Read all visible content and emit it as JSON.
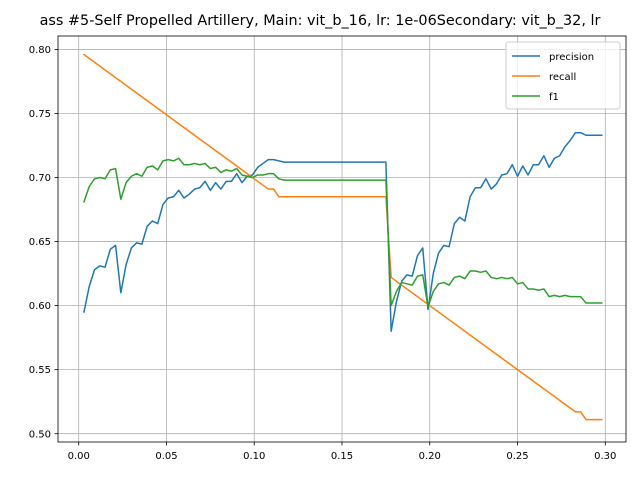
{
  "chart_data": {
    "type": "line",
    "title": "ass #5-Self Propelled Artillery, Main: vit_b_16, lr: 1e-06Secondary: vit_b_32, lr",
    "xlabel": "",
    "ylabel": "",
    "xlim": [
      -0.0118,
      0.3118
    ],
    "ylim": [
      0.4935,
      0.8105
    ],
    "x_ticks": [
      0.0,
      0.05,
      0.1,
      0.15,
      0.2,
      0.25,
      0.3
    ],
    "x_tick_labels": [
      "0.00",
      "0.05",
      "0.10",
      "0.15",
      "0.20",
      "0.25",
      "0.30"
    ],
    "y_ticks": [
      0.5,
      0.55,
      0.6,
      0.65,
      0.7,
      0.75,
      0.8
    ],
    "y_tick_labels": [
      "0.50",
      "0.55",
      "0.60",
      "0.65",
      "0.70",
      "0.75",
      "0.80"
    ],
    "grid": true,
    "legend_position": "top-right",
    "series": [
      {
        "name": "precision",
        "color": "#1f77b4",
        "points": [
          [
            0.003,
            0.595
          ],
          [
            0.006,
            0.615
          ],
          [
            0.009,
            0.628
          ],
          [
            0.012,
            0.631
          ],
          [
            0.015,
            0.63
          ],
          [
            0.018,
            0.644
          ],
          [
            0.021,
            0.647
          ],
          [
            0.024,
            0.61
          ],
          [
            0.027,
            0.632
          ],
          [
            0.03,
            0.645
          ],
          [
            0.033,
            0.649
          ],
          [
            0.036,
            0.648
          ],
          [
            0.039,
            0.662
          ],
          [
            0.042,
            0.666
          ],
          [
            0.045,
            0.664
          ],
          [
            0.048,
            0.679
          ],
          [
            0.051,
            0.684
          ],
          [
            0.054,
            0.685
          ],
          [
            0.057,
            0.69
          ],
          [
            0.06,
            0.684
          ],
          [
            0.063,
            0.687
          ],
          [
            0.066,
            0.691
          ],
          [
            0.069,
            0.692
          ],
          [
            0.072,
            0.697
          ],
          [
            0.075,
            0.69
          ],
          [
            0.078,
            0.696
          ],
          [
            0.081,
            0.691
          ],
          [
            0.084,
            0.697
          ],
          [
            0.087,
            0.697
          ],
          [
            0.09,
            0.703
          ],
          [
            0.093,
            0.696
          ],
          [
            0.096,
            0.701
          ],
          [
            0.099,
            0.702
          ],
          [
            0.102,
            0.708
          ],
          [
            0.105,
            0.711
          ],
          [
            0.108,
            0.714
          ],
          [
            0.111,
            0.714
          ],
          [
            0.114,
            0.713
          ],
          [
            0.117,
            0.712
          ],
          [
            0.175,
            0.712
          ],
          [
            0.178,
            0.58
          ],
          [
            0.181,
            0.603
          ],
          [
            0.184,
            0.619
          ],
          [
            0.187,
            0.624
          ],
          [
            0.19,
            0.623
          ],
          [
            0.193,
            0.639
          ],
          [
            0.196,
            0.645
          ],
          [
            0.199,
            0.597
          ],
          [
            0.202,
            0.625
          ],
          [
            0.205,
            0.641
          ],
          [
            0.208,
            0.647
          ],
          [
            0.211,
            0.646
          ],
          [
            0.214,
            0.664
          ],
          [
            0.217,
            0.669
          ],
          [
            0.22,
            0.666
          ],
          [
            0.223,
            0.685
          ],
          [
            0.226,
            0.692
          ],
          [
            0.229,
            0.692
          ],
          [
            0.232,
            0.699
          ],
          [
            0.235,
            0.691
          ],
          [
            0.238,
            0.695
          ],
          [
            0.241,
            0.702
          ],
          [
            0.244,
            0.703
          ],
          [
            0.247,
            0.71
          ],
          [
            0.25,
            0.701
          ],
          [
            0.253,
            0.709
          ],
          [
            0.256,
            0.702
          ],
          [
            0.259,
            0.71
          ],
          [
            0.262,
            0.71
          ],
          [
            0.265,
            0.717
          ],
          [
            0.268,
            0.708
          ],
          [
            0.271,
            0.715
          ],
          [
            0.274,
            0.717
          ],
          [
            0.277,
            0.724
          ],
          [
            0.28,
            0.729
          ],
          [
            0.283,
            0.735
          ],
          [
            0.286,
            0.735
          ],
          [
            0.289,
            0.733
          ],
          [
            0.292,
            0.733
          ],
          [
            0.298,
            0.733
          ]
        ]
      },
      {
        "name": "recall",
        "color": "#ff7f0e",
        "points": [
          [
            0.003,
            0.796
          ],
          [
            0.108,
            0.691
          ],
          [
            0.111,
            0.691
          ],
          [
            0.114,
            0.685
          ],
          [
            0.175,
            0.685
          ],
          [
            0.178,
            0.622
          ],
          [
            0.283,
            0.517
          ],
          [
            0.286,
            0.517
          ],
          [
            0.289,
            0.511
          ],
          [
            0.298,
            0.511
          ]
        ]
      },
      {
        "name": "f1",
        "color": "#2ca02c",
        "points": [
          [
            0.003,
            0.681
          ],
          [
            0.006,
            0.693
          ],
          [
            0.009,
            0.699
          ],
          [
            0.012,
            0.7
          ],
          [
            0.015,
            0.699
          ],
          [
            0.018,
            0.706
          ],
          [
            0.021,
            0.707
          ],
          [
            0.024,
            0.683
          ],
          [
            0.027,
            0.696
          ],
          [
            0.03,
            0.701
          ],
          [
            0.033,
            0.703
          ],
          [
            0.036,
            0.701
          ],
          [
            0.039,
            0.708
          ],
          [
            0.042,
            0.709
          ],
          [
            0.045,
            0.706
          ],
          [
            0.048,
            0.713
          ],
          [
            0.051,
            0.714
          ],
          [
            0.054,
            0.713
          ],
          [
            0.057,
            0.715
          ],
          [
            0.06,
            0.71
          ],
          [
            0.063,
            0.71
          ],
          [
            0.066,
            0.711
          ],
          [
            0.069,
            0.71
          ],
          [
            0.072,
            0.711
          ],
          [
            0.075,
            0.707
          ],
          [
            0.078,
            0.708
          ],
          [
            0.081,
            0.704
          ],
          [
            0.084,
            0.706
          ],
          [
            0.087,
            0.705
          ],
          [
            0.09,
            0.707
          ],
          [
            0.093,
            0.702
          ],
          [
            0.096,
            0.701
          ],
          [
            0.099,
            0.7
          ],
          [
            0.102,
            0.702
          ],
          [
            0.105,
            0.702
          ],
          [
            0.108,
            0.703
          ],
          [
            0.111,
            0.703
          ],
          [
            0.114,
            0.699
          ],
          [
            0.117,
            0.698
          ],
          [
            0.175,
            0.698
          ],
          [
            0.178,
            0.6
          ],
          [
            0.181,
            0.611
          ],
          [
            0.184,
            0.618
          ],
          [
            0.187,
            0.617
          ],
          [
            0.19,
            0.616
          ],
          [
            0.193,
            0.623
          ],
          [
            0.196,
            0.624
          ],
          [
            0.199,
            0.599
          ],
          [
            0.202,
            0.611
          ],
          [
            0.205,
            0.617
          ],
          [
            0.208,
            0.618
          ],
          [
            0.211,
            0.616
          ],
          [
            0.214,
            0.622
          ],
          [
            0.217,
            0.623
          ],
          [
            0.22,
            0.621
          ],
          [
            0.223,
            0.627
          ],
          [
            0.226,
            0.627
          ],
          [
            0.229,
            0.626
          ],
          [
            0.232,
            0.627
          ],
          [
            0.235,
            0.622
          ],
          [
            0.238,
            0.621
          ],
          [
            0.241,
            0.622
          ],
          [
            0.244,
            0.621
          ],
          [
            0.247,
            0.622
          ],
          [
            0.25,
            0.617
          ],
          [
            0.253,
            0.618
          ],
          [
            0.256,
            0.613
          ],
          [
            0.259,
            0.613
          ],
          [
            0.262,
            0.612
          ],
          [
            0.265,
            0.613
          ],
          [
            0.268,
            0.607
          ],
          [
            0.271,
            0.608
          ],
          [
            0.274,
            0.607
          ],
          [
            0.277,
            0.608
          ],
          [
            0.28,
            0.607
          ],
          [
            0.283,
            0.607
          ],
          [
            0.286,
            0.607
          ],
          [
            0.289,
            0.602
          ],
          [
            0.292,
            0.602
          ],
          [
            0.298,
            0.602
          ]
        ]
      }
    ]
  }
}
